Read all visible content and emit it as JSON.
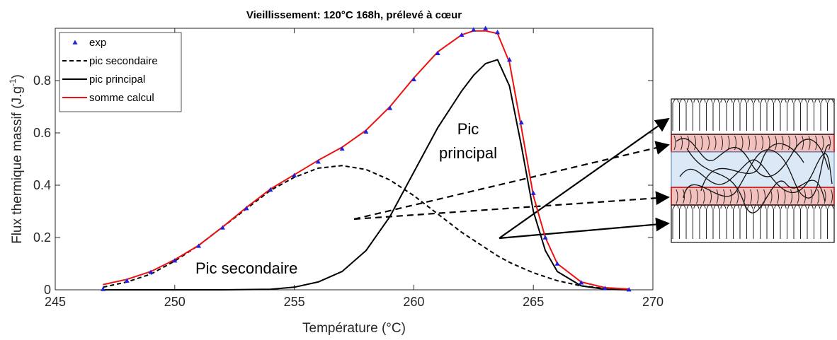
{
  "chart_data": {
    "type": "line",
    "title": "Vieillissement: 120°C 168h, prélevé à cœur",
    "xlabel": "Température (°C)",
    "ylabel": [
      "Flux thermique massif (J.g",
      "-1",
      ")"
    ],
    "xlim": [
      245,
      270
    ],
    "ylim": [
      0,
      1
    ],
    "xticks": [
      245,
      250,
      255,
      260,
      265,
      270
    ],
    "yticks": [
      0,
      0.2,
      0.4,
      0.6,
      0.8
    ],
    "x": [
      247,
      248,
      249,
      250,
      251,
      252,
      253,
      254,
      255,
      256,
      257,
      258,
      259,
      260,
      261,
      262,
      262.5,
      263,
      263.5,
      264,
      264.5,
      265,
      265.5,
      266,
      267,
      268,
      269
    ],
    "series": [
      {
        "name": "exp",
        "color": "#1f1fe0",
        "style": "marker",
        "values": [
          0.003,
          0.035,
          0.068,
          0.112,
          0.168,
          0.238,
          0.312,
          0.383,
          0.438,
          0.49,
          0.54,
          0.605,
          0.695,
          0.805,
          0.905,
          0.975,
          0.995,
          1.0,
          0.985,
          0.88,
          0.64,
          0.37,
          0.2,
          0.1,
          0.028,
          0.006,
          0.001
        ]
      },
      {
        "name": "pic secondaire",
        "color": "#000000",
        "style": "dashed",
        "values": [
          0.01,
          0.03,
          0.06,
          0.11,
          0.17,
          0.24,
          0.31,
          0.38,
          0.43,
          0.465,
          0.475,
          0.46,
          0.42,
          0.36,
          0.29,
          0.22,
          0.19,
          0.16,
          0.13,
          0.105,
          0.085,
          0.065,
          0.05,
          0.035,
          0.015,
          0.005,
          0.001
        ]
      },
      {
        "name": "pic principal",
        "color": "#000000",
        "style": "solid",
        "values": [
          0,
          0,
          0,
          0,
          0,
          0,
          0.001,
          0.002,
          0.01,
          0.03,
          0.07,
          0.15,
          0.28,
          0.45,
          0.62,
          0.76,
          0.82,
          0.865,
          0.88,
          0.78,
          0.55,
          0.3,
          0.15,
          0.07,
          0.015,
          0.002,
          0
        ]
      },
      {
        "name": "somme calcul",
        "color": "#ee1111",
        "style": "solid",
        "values": [
          0.02,
          0.04,
          0.07,
          0.115,
          0.17,
          0.24,
          0.315,
          0.385,
          0.44,
          0.495,
          0.545,
          0.61,
          0.7,
          0.81,
          0.91,
          0.975,
          0.99,
          0.99,
          0.98,
          0.87,
          0.62,
          0.36,
          0.2,
          0.1,
          0.03,
          0.008,
          0.003
        ]
      }
    ],
    "annotations": [
      "Pic secondaire",
      "Pic",
      "principal"
    ]
  }
}
